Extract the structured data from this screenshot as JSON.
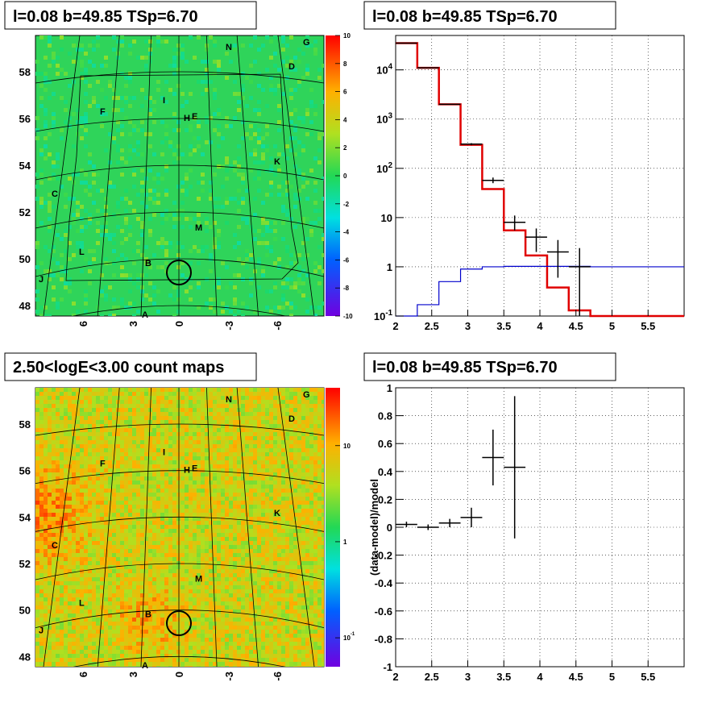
{
  "chart_data": [
    {
      "id": "tl",
      "type": "heatmap",
      "title": "l=0.08 b=49.85 TSp=6.70",
      "colormap": "rainbow",
      "base_color": "#2fd45a",
      "ytick_labels": [
        "58",
        "56",
        "54",
        "52",
        "50",
        "48"
      ],
      "xtick_labels": [
        "6",
        "3",
        "0",
        "-3",
        "-6"
      ],
      "colorbar_range": [
        -10,
        10
      ],
      "colorbar_tick_labels": [
        "10",
        "8",
        "6",
        "4",
        "2",
        "0",
        "-2",
        "-4",
        "-6",
        "-8",
        "-10"
      ],
      "source_labels": [
        "N",
        "G",
        "D",
        "I",
        "H",
        "E",
        "F",
        "K",
        "C",
        "M",
        "L",
        "B",
        "J",
        "A"
      ],
      "circle_marker": "target position"
    },
    {
      "id": "tr",
      "type": "histogram",
      "title": "l=0.08 b=49.85 TSp=6.70",
      "yscale": "log",
      "xlim": [
        2,
        6
      ],
      "ylim": [
        0.1,
        50000
      ],
      "xtick_labels": [
        "2",
        "2.5",
        "3",
        "3.5",
        "4",
        "4.5",
        "5",
        "5.5"
      ],
      "ytick_labels": [
        "10^4",
        "10^3",
        "10^2",
        "10",
        "1",
        "10^-1"
      ],
      "grid": true,
      "series": [
        {
          "color": "#e00000",
          "edges": [
            2,
            2.3,
            2.6,
            2.9,
            3.2,
            3.5,
            3.8,
            4.1,
            4.4,
            4.7,
            6
          ],
          "values": [
            35000,
            11000,
            2000,
            300,
            38,
            5.5,
            1.7,
            0.38,
            0.13,
            0.1
          ]
        },
        {
          "color": "#0000cc",
          "edges": [
            2,
            2.3,
            2.6,
            2.9,
            3.2,
            3.5,
            3.8,
            4.1,
            4.4,
            4.7,
            6
          ],
          "values": [
            0.1,
            0.17,
            0.5,
            0.9,
            1.0,
            1.02,
            1.02,
            1.02,
            1.02,
            1.0
          ]
        },
        {
          "color": "#000000",
          "style": "errorbars",
          "points": [
            {
              "x": 2.15,
              "y": 35000,
              "xerr": 0.15,
              "ylo": 35000,
              "yhi": 35000
            },
            {
              "x": 2.45,
              "y": 11000,
              "xerr": 0.15,
              "ylo": 11000,
              "yhi": 11000
            },
            {
              "x": 2.75,
              "y": 2000,
              "xerr": 0.15,
              "ylo": 2000,
              "yhi": 2000
            },
            {
              "x": 3.05,
              "y": 310,
              "xerr": 0.15,
              "ylo": 295,
              "yhi": 325
            },
            {
              "x": 3.35,
              "y": 57,
              "xerr": 0.15,
              "ylo": 50,
              "yhi": 65
            },
            {
              "x": 3.65,
              "y": 8,
              "xerr": 0.15,
              "ylo": 5.5,
              "yhi": 11
            },
            {
              "x": 3.95,
              "y": 4,
              "xerr": 0.15,
              "ylo": 2,
              "yhi": 6
            },
            {
              "x": 4.25,
              "y": 2,
              "xerr": 0.15,
              "ylo": 0.6,
              "yhi": 3.5
            },
            {
              "x": 4.55,
              "y": 1,
              "xerr": 0.15,
              "ylo": 0.1,
              "yhi": 2.4
            }
          ]
        }
      ]
    },
    {
      "id": "bl",
      "type": "heatmap",
      "title": "2.50<logE<3.00 count maps",
      "colormap": "rainbow",
      "colorbar_scale": "log",
      "colorbar_range": [
        0.05,
        40
      ],
      "colorbar_tick_labels": [
        "10",
        "1",
        "10^-1"
      ],
      "ytick_labels": [
        "58",
        "56",
        "54",
        "52",
        "50",
        "48"
      ],
      "xtick_labels": [
        "6",
        "3",
        "0",
        "-3",
        "-6"
      ],
      "source_labels": [
        "N",
        "G",
        "D",
        "I",
        "H",
        "E",
        "F",
        "K",
        "C",
        "M",
        "L",
        "B",
        "J",
        "A"
      ],
      "circle_marker": "target position"
    },
    {
      "id": "br",
      "type": "scatter",
      "title": "l=0.08 b=49.85 TSp=6.70",
      "ylabel": "(data-model)/model",
      "xlim": [
        2,
        6
      ],
      "ylim": [
        -1,
        1
      ],
      "xtick_labels": [
        "2",
        "2.5",
        "3",
        "3.5",
        "4",
        "4.5",
        "5",
        "5.5"
      ],
      "ytick_labels": [
        "1",
        "0.8",
        "0.6",
        "0.4",
        "0.2",
        "0",
        "-0.2",
        "-0.4",
        "-0.6",
        "-0.8",
        "-1"
      ],
      "grid": true,
      "series": [
        {
          "color": "#000000",
          "style": "errorbars",
          "points": [
            {
              "x": 2.15,
              "y": 0.02,
              "xerr": 0.15,
              "yerr": 0.02
            },
            {
              "x": 2.45,
              "y": 0.0,
              "xerr": 0.15,
              "yerr": 0.02
            },
            {
              "x": 2.75,
              "y": 0.03,
              "xerr": 0.15,
              "yerr": 0.03
            },
            {
              "x": 3.05,
              "y": 0.07,
              "xerr": 0.15,
              "yerr": 0.07
            },
            {
              "x": 3.35,
              "y": 0.5,
              "xerr": 0.15,
              "yerr": 0.2
            },
            {
              "x": 3.65,
              "y": 0.43,
              "xerr": 0.15,
              "yerr": 0.51
            }
          ]
        }
      ]
    }
  ]
}
